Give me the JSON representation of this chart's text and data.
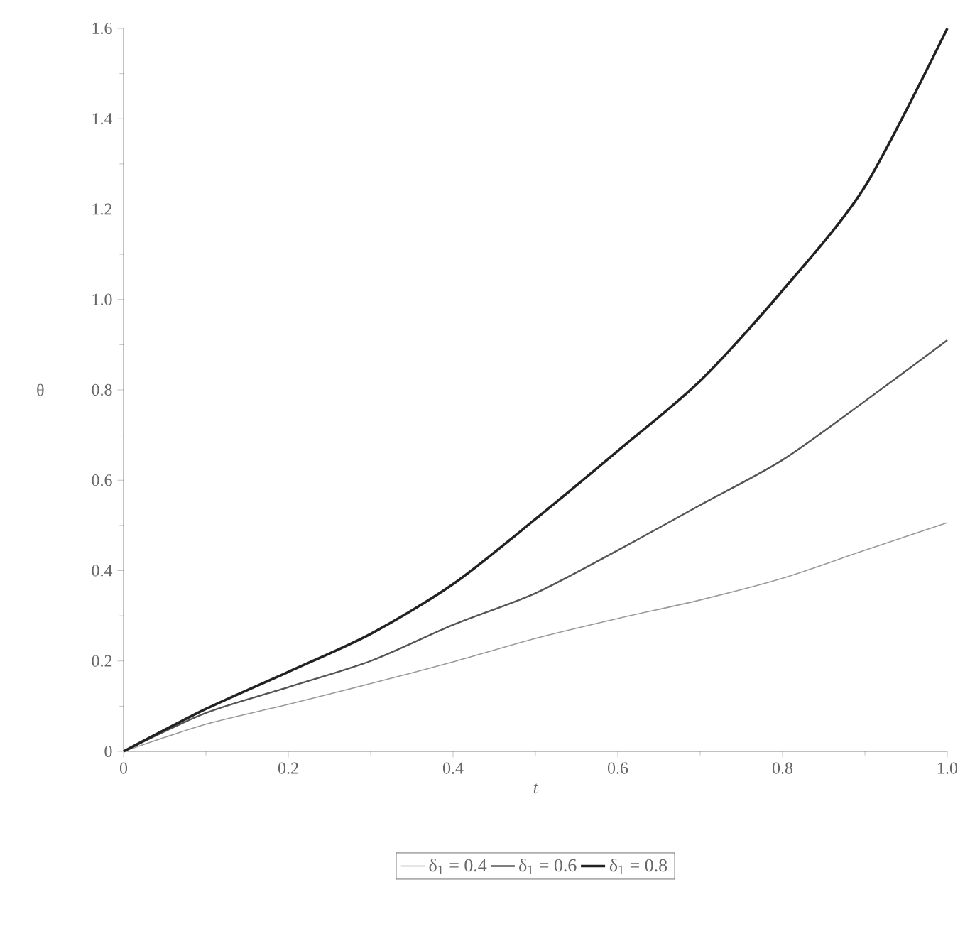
{
  "chart_data": {
    "type": "line",
    "xlabel": "t",
    "ylabel": "θ",
    "x": [
      0,
      0.1,
      0.2,
      0.3,
      0.4,
      0.5,
      0.6,
      0.7,
      0.8,
      0.9,
      1.0
    ],
    "series": [
      {
        "name": "δ$_{1}$ = 0.4",
        "color": "#9a9a9a",
        "values": [
          0,
          0.06,
          0.104,
          0.15,
          0.198,
          0.25,
          0.294,
          0.335,
          0.383,
          0.445,
          0.506
        ]
      },
      {
        "name": "δ$_{1}$ = 0.6",
        "color": "#555555",
        "values": [
          0,
          0.085,
          0.142,
          0.2,
          0.28,
          0.35,
          0.445,
          0.545,
          0.645,
          0.775,
          0.91
        ]
      },
      {
        "name": "δ$_{1}$ = 0.8",
        "color": "#222222",
        "values": [
          0,
          0.094,
          0.176,
          0.26,
          0.37,
          0.514,
          0.665,
          0.82,
          1.02,
          1.25,
          1.6
        ]
      }
    ],
    "xlim": [
      0,
      1.0
    ],
    "ylim": [
      0,
      1.6
    ],
    "xticks": [
      0,
      0.2,
      0.4,
      0.6,
      0.8,
      {
        "value": 1.0,
        "label": "1.0"
      }
    ],
    "yticks": [
      0,
      0.2,
      0.4,
      0.6,
      0.8,
      {
        "value": 1.0,
        "label": "1.0"
      },
      1.2,
      1.4,
      1.6
    ],
    "legend": "bottom",
    "grid": false,
    "marker": "none",
    "line_style": "solid"
  }
}
